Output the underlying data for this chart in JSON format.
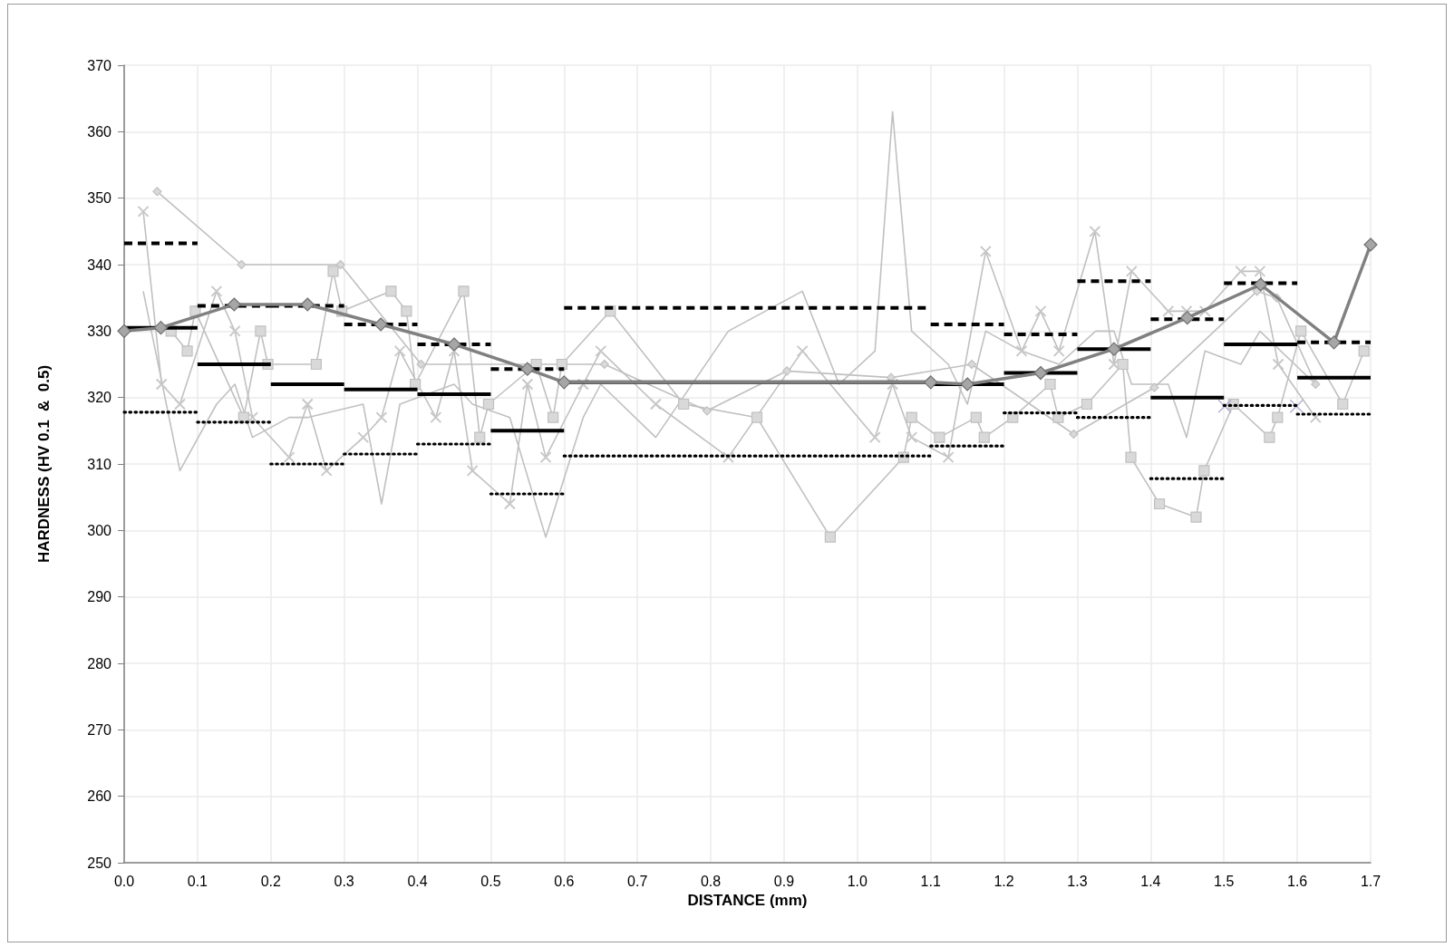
{
  "chart_data": {
    "type": "line",
    "xlabel": "DISTANCE (mm)",
    "ylabel": "HARDNESS (HV 0.1  &  0.5)",
    "xlim": [
      0,
      1.7
    ],
    "xticks": [
      {
        "value": 0,
        "label": "0.0"
      },
      0.1,
      0.2,
      0.3,
      0.4,
      0.5,
      0.6,
      0.7,
      0.8,
      0.9,
      {
        "value": 1,
        "label": "1.0"
      },
      1.1,
      1.2,
      1.3,
      1.4,
      1.5,
      1.6,
      1.7
    ],
    "ylim": [
      250,
      370
    ],
    "yticks": [
      250,
      260,
      270,
      280,
      290,
      300,
      310,
      320,
      330,
      340,
      350,
      360,
      370
    ],
    "grid": true,
    "series": [
      {
        "color": "#c0c0c0",
        "marker": "none",
        "line_style": "solid",
        "x": [
          0.026,
          0.076,
          0.126,
          0.151,
          0.175,
          0.225,
          0.25,
          0.326,
          0.351,
          0.376,
          0.45,
          0.475,
          0.526,
          0.575,
          0.626,
          0.65,
          0.725,
          0.824,
          0.925,
          0.975,
          1.024,
          1.048,
          1.074,
          1.124,
          1.15,
          1.175,
          1.224,
          1.275,
          1.325,
          1.35,
          1.374,
          1.424,
          1.449,
          1.474,
          1.523,
          1.549,
          1.625
        ],
        "values": [
          336,
          309,
          319,
          322,
          314,
          317,
          317,
          319,
          304,
          319,
          322,
          319,
          317,
          299,
          317,
          322,
          314,
          330,
          336,
          322,
          327,
          363,
          330,
          325,
          319,
          330,
          327,
          325,
          330,
          330,
          322,
          322,
          314,
          327,
          325,
          330,
          322
        ]
      },
      {
        "color": "#c0c0c0",
        "marker": "diamond",
        "line_style": "solid",
        "x": [
          0.045,
          0.16,
          0.295,
          0.405,
          0.655,
          0.795,
          0.904,
          1.046,
          1.156,
          1.295,
          1.405,
          1.545,
          1.572,
          1.625
        ],
        "values": [
          351,
          340,
          340,
          325,
          325,
          318,
          324,
          323,
          325,
          314.5,
          321.5,
          336,
          335,
          322
        ]
      },
      {
        "color": "#c0c0c0",
        "marker": "square",
        "line_style": "solid",
        "x": [
          0.064,
          0.086,
          0.097,
          0.163,
          0.186,
          0.196,
          0.262,
          0.285,
          0.297,
          0.364,
          0.385,
          0.397,
          0.463,
          0.485,
          0.497,
          0.562,
          0.585,
          0.597,
          0.663,
          0.763,
          0.863,
          0.963,
          1.063,
          1.074,
          1.112,
          1.162,
          1.173,
          1.212,
          1.263,
          1.274,
          1.313,
          1.362,
          1.373,
          1.412,
          1.462,
          1.473,
          1.513,
          1.562,
          1.573,
          1.605,
          1.662,
          1.691
        ],
        "values": [
          330,
          327,
          333,
          317,
          330,
          325,
          325,
          339,
          333,
          336,
          333,
          322,
          336,
          314,
          319,
          325,
          317,
          325,
          333,
          319,
          317,
          299,
          311,
          317,
          314,
          317,
          314,
          317,
          322,
          317,
          319,
          325,
          311,
          304,
          302,
          309,
          319,
          314,
          317,
          330,
          319,
          327
        ]
      },
      {
        "color": "#c0c0c0",
        "marker": "cross",
        "line_style": "solid",
        "x": [
          0.026,
          0.051,
          0.076,
          0.126,
          0.151,
          0.175,
          0.225,
          0.25,
          0.276,
          0.326,
          0.351,
          0.376,
          0.425,
          0.45,
          0.475,
          0.526,
          0.55,
          0.575,
          0.626,
          0.65,
          0.725,
          0.824,
          0.925,
          1.024,
          1.048,
          1.074,
          1.124,
          1.175,
          1.224,
          1.25,
          1.275,
          1.324,
          1.35,
          1.374,
          1.424,
          1.449,
          1.474,
          1.523,
          1.549,
          1.574,
          1.625
        ],
        "values": [
          348,
          322,
          319,
          336,
          330,
          317,
          311,
          319,
          309,
          314,
          317,
          327,
          317,
          327,
          309,
          304,
          322,
          311,
          322,
          327,
          319,
          311,
          327,
          314,
          322,
          314,
          311,
          342,
          327,
          333,
          327,
          345,
          325,
          339,
          333,
          333,
          333,
          339,
          339,
          325,
          317
        ]
      },
      {
        "color": "#a89cc8",
        "type": "scatter",
        "marker": "cross",
        "x": [
          1.501,
          1.599
        ],
        "values": [
          318.7,
          318.7
        ]
      },
      {
        "color": "#000000",
        "marker": "none",
        "line_style": "dashed",
        "x": [
          0,
          0.1,
          0.1,
          0.2,
          0.2,
          0.3,
          0.3,
          0.4,
          0.4,
          0.5,
          0.5,
          0.6,
          0.6,
          1.1,
          1.1,
          1.2,
          1.2,
          1.3,
          1.3,
          1.4,
          1.4,
          1.5,
          1.5,
          1.6,
          1.6,
          1.7
        ],
        "values": [
          343.2,
          343.2,
          333.8,
          333.8,
          333.8,
          333.8,
          331,
          331,
          328,
          328,
          324.3,
          324.3,
          333.5,
          333.5,
          331,
          331,
          329.5,
          329.5,
          337.5,
          337.5,
          331.8,
          331.8,
          337.2,
          337.2,
          328.3,
          328.3
        ]
      },
      {
        "color": "#000000",
        "marker": "none",
        "line_style": "solid",
        "x": [
          0,
          0.1,
          0.1,
          0.2,
          0.2,
          0.3,
          0.3,
          0.4,
          0.4,
          0.5,
          0.5,
          0.6,
          0.6,
          1.1,
          1.1,
          1.2,
          1.2,
          1.3,
          1.3,
          1.4,
          1.4,
          1.5,
          1.5,
          1.6,
          1.6,
          1.7
        ],
        "values": [
          330.5,
          330.5,
          325,
          325,
          322,
          322,
          321.2,
          321.2,
          320.5,
          320.5,
          315,
          315,
          322.3,
          322.3,
          322,
          322,
          323.7,
          323.7,
          327.3,
          327.3,
          320,
          320,
          328,
          328,
          323,
          323
        ]
      },
      {
        "color": "#000000",
        "marker": "none",
        "line_style": "dotted",
        "x": [
          0,
          0.1,
          0.1,
          0.2,
          0.2,
          0.3,
          0.3,
          0.4,
          0.4,
          0.5,
          0.5,
          0.6,
          0.6,
          1.1,
          1.1,
          1.2,
          1.2,
          1.3,
          1.3,
          1.4,
          1.4,
          1.5,
          1.5,
          1.6,
          1.6,
          1.7
        ],
        "values": [
          317.8,
          317.8,
          316.3,
          316.3,
          310,
          310,
          311.5,
          311.5,
          313,
          313,
          305.5,
          305.5,
          311.2,
          311.2,
          312.7,
          312.7,
          317.7,
          317.7,
          317,
          317,
          307.8,
          307.8,
          318.8,
          318.8,
          317.5,
          317.5
        ]
      },
      {
        "color": "#808080",
        "marker": "diamond",
        "line_style": "solid",
        "x": [
          0,
          0.05,
          0.15,
          0.25,
          0.35,
          0.45,
          0.55,
          0.6,
          1.1,
          1.15,
          1.25,
          1.35,
          1.45,
          1.55,
          1.65,
          1.7
        ],
        "values": [
          330,
          330.5,
          334,
          334,
          331,
          328,
          324.3,
          322.3,
          322.3,
          322,
          323.7,
          327.3,
          332,
          337,
          328.3,
          343
        ]
      }
    ]
  }
}
